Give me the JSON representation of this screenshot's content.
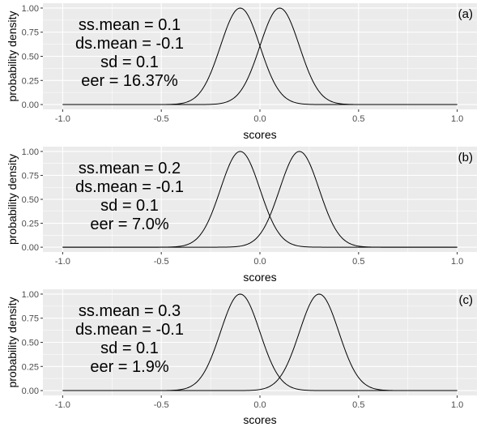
{
  "chart_data": [
    {
      "type": "line",
      "panel_label": "(a)",
      "xlabel": "scores",
      "ylabel": "probability density",
      "xlim": [
        -1.0,
        1.0
      ],
      "ylim": [
        0.0,
        1.0
      ],
      "x_ticks": [
        "-1.0",
        "-0.5",
        "0.0",
        "0.5",
        "1.0"
      ],
      "y_ticks": [
        "0.00",
        "0.25",
        "0.50",
        "0.75",
        "1.00"
      ],
      "grid": true,
      "annotations": [
        "ss.mean = 0.1",
        "ds.mean = -0.1",
        "sd = 0.1",
        "eer = 16.37%"
      ],
      "series": [
        {
          "distribution": "normal-scaled",
          "mean": -0.1,
          "sd": 0.1,
          "peak": 1.0
        },
        {
          "distribution": "normal-scaled",
          "mean": 0.1,
          "sd": 0.1,
          "peak": 1.0
        }
      ]
    },
    {
      "type": "line",
      "panel_label": "(b)",
      "xlabel": "scores",
      "ylabel": "probability density",
      "xlim": [
        -1.0,
        1.0
      ],
      "ylim": [
        0.0,
        1.0
      ],
      "x_ticks": [
        "-1.0",
        "-0.5",
        "0.0",
        "0.5",
        "1.0"
      ],
      "y_ticks": [
        "0.00",
        "0.25",
        "0.50",
        "0.75",
        "1.00"
      ],
      "grid": true,
      "annotations": [
        "ss.mean = 0.2",
        "ds.mean = -0.1",
        "sd = 0.1",
        "eer = 7.0%"
      ],
      "series": [
        {
          "distribution": "normal-scaled",
          "mean": -0.1,
          "sd": 0.1,
          "peak": 1.0
        },
        {
          "distribution": "normal-scaled",
          "mean": 0.2,
          "sd": 0.1,
          "peak": 1.0
        }
      ]
    },
    {
      "type": "line",
      "panel_label": "(c)",
      "xlabel": "scores",
      "ylabel": "probability density",
      "xlim": [
        -1.0,
        1.0
      ],
      "ylim": [
        0.0,
        1.0
      ],
      "x_ticks": [
        "-1.0",
        "-0.5",
        "0.0",
        "0.5",
        "1.0"
      ],
      "y_ticks": [
        "0.00",
        "0.25",
        "0.50",
        "0.75",
        "1.00"
      ],
      "grid": true,
      "annotations": [
        "ss.mean = 0.3",
        "ds.mean = -0.1",
        "sd = 0.1",
        "eer = 1.9%"
      ],
      "series": [
        {
          "distribution": "normal-scaled",
          "mean": -0.1,
          "sd": 0.1,
          "peak": 1.0
        },
        {
          "distribution": "normal-scaled",
          "mean": 0.3,
          "sd": 0.1,
          "peak": 1.0
        }
      ]
    }
  ]
}
